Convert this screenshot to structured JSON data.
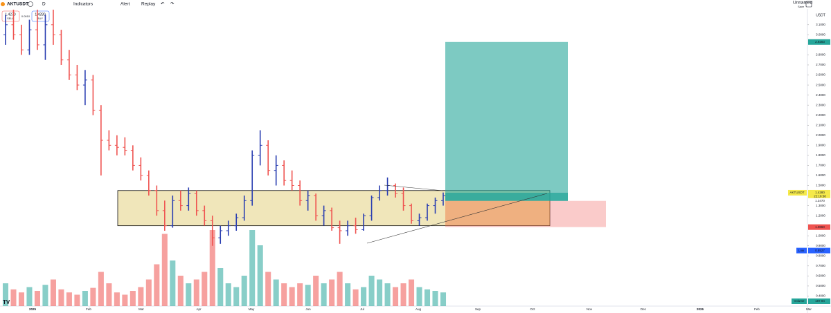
{
  "toolbar": {
    "symbol": "AKTUSDT",
    "interval": "D",
    "indicators": "Indicators",
    "alert": "Alert",
    "replay": "Replay",
    "layout_name": "Unnamed",
    "save": "Save"
  },
  "trade_panel": {
    "sell_price": "1.4270",
    "sell": "SELL",
    "spread": "0.0010",
    "buy_price": "1.4280",
    "buy": "BUY"
  },
  "chart_data": {
    "type": "ohlc",
    "currency": "USDT",
    "up_color": "#2a3eb1",
    "down_color": "#ef5350",
    "ylim": [
      0.3,
      3.25
    ],
    "yticks": [
      {
        "value": 0.4,
        "label": "0.4000"
      },
      {
        "value": 0.5,
        "label": "0.5000"
      },
      {
        "value": 0.6,
        "label": "0.6000"
      },
      {
        "value": 0.7,
        "label": "0.7000"
      },
      {
        "value": 0.8,
        "label": "0.8000"
      },
      {
        "value": 0.9,
        "label": "0.9000"
      },
      {
        "value": 1.0,
        "label": "1.0000"
      },
      {
        "value": 1.2,
        "label": "1.2000"
      },
      {
        "value": 1.3,
        "label": "1.3000"
      },
      {
        "value": 1.5,
        "label": "1.5000"
      },
      {
        "value": 1.6,
        "label": "1.6000"
      },
      {
        "value": 1.7,
        "label": "1.7000"
      },
      {
        "value": 1.8,
        "label": "1.8000"
      },
      {
        "value": 1.9,
        "label": "1.9000"
      },
      {
        "value": 2.0,
        "label": "2.0000"
      },
      {
        "value": 2.1,
        "label": "2.1000"
      },
      {
        "value": 2.2,
        "label": "2.2000"
      },
      {
        "value": 2.3,
        "label": "2.3000"
      },
      {
        "value": 2.4,
        "label": "2.4000"
      },
      {
        "value": 2.5,
        "label": "2.5000"
      },
      {
        "value": 2.6,
        "label": "2.6000"
      },
      {
        "value": 2.7,
        "label": "2.7000"
      },
      {
        "value": 2.8,
        "label": "2.8000"
      },
      {
        "value": 3.0,
        "label": "3.0000"
      },
      {
        "value": 3.1,
        "label": "3.1000"
      }
    ],
    "time_labels": [
      "2025",
      "Feb",
      "Mar",
      "Apr",
      "May",
      "Jun",
      "Jul",
      "Aug",
      "Sep",
      "Oct",
      "Nov",
      "Dec",
      "2026",
      "Feb",
      "Mar"
    ],
    "ohlc": [
      [
        3.0,
        3.2,
        2.9,
        3.1
      ],
      [
        3.1,
        3.25,
        2.95,
        3.0
      ],
      [
        3.0,
        3.1,
        2.8,
        2.85
      ],
      [
        2.85,
        3.15,
        2.8,
        3.05
      ],
      [
        3.05,
        3.25,
        2.85,
        2.9
      ],
      [
        2.9,
        3.2,
        2.75,
        3.1
      ],
      [
        3.1,
        3.25,
        2.9,
        3.0
      ],
      [
        3.0,
        3.05,
        2.7,
        2.75
      ],
      [
        2.75,
        2.85,
        2.55,
        2.6
      ],
      [
        2.6,
        2.7,
        2.45,
        2.5
      ],
      [
        2.5,
        2.65,
        2.3,
        2.55
      ],
      [
        2.55,
        2.6,
        2.2,
        2.25
      ],
      [
        2.25,
        2.3,
        1.6,
        1.95
      ],
      [
        1.95,
        2.05,
        1.85,
        1.9
      ],
      [
        1.9,
        2.0,
        1.8,
        1.88
      ],
      [
        1.88,
        1.98,
        1.8,
        1.85
      ],
      [
        1.85,
        1.9,
        1.65,
        1.7
      ],
      [
        1.7,
        1.78,
        1.55,
        1.6
      ],
      [
        1.6,
        1.65,
        1.4,
        1.45
      ],
      [
        1.45,
        1.5,
        1.2,
        1.25
      ],
      [
        1.25,
        1.35,
        1.05,
        1.1
      ],
      [
        1.1,
        1.4,
        1.08,
        1.35
      ],
      [
        1.35,
        1.45,
        1.25,
        1.3
      ],
      [
        1.3,
        1.48,
        1.25,
        1.42
      ],
      [
        1.42,
        1.45,
        1.2,
        1.25
      ],
      [
        1.25,
        1.3,
        1.1,
        1.15
      ],
      [
        1.15,
        1.2,
        0.9,
        0.98
      ],
      [
        0.98,
        1.1,
        0.92,
        1.05
      ],
      [
        1.05,
        1.15,
        1.0,
        1.1
      ],
      [
        1.1,
        1.22,
        1.05,
        1.18
      ],
      [
        1.18,
        1.4,
        1.15,
        1.35
      ],
      [
        1.35,
        1.85,
        1.3,
        1.8
      ],
      [
        1.8,
        2.05,
        1.7,
        1.9
      ],
      [
        1.9,
        1.95,
        1.6,
        1.65
      ],
      [
        1.65,
        1.8,
        1.5,
        1.7
      ],
      [
        1.7,
        1.75,
        1.5,
        1.55
      ],
      [
        1.55,
        1.65,
        1.45,
        1.5
      ],
      [
        1.5,
        1.55,
        1.3,
        1.35
      ],
      [
        1.35,
        1.45,
        1.25,
        1.4
      ],
      [
        1.4,
        1.42,
        1.15,
        1.2
      ],
      [
        1.2,
        1.3,
        1.1,
        1.25
      ],
      [
        1.25,
        1.28,
        1.05,
        1.08
      ],
      [
        1.08,
        1.15,
        0.92,
        1.05
      ],
      [
        1.05,
        1.15,
        1.0,
        1.1
      ],
      [
        1.1,
        1.18,
        1.02,
        1.06
      ],
      [
        1.06,
        1.22,
        1.05,
        1.2
      ],
      [
        1.2,
        1.4,
        1.15,
        1.38
      ],
      [
        1.38,
        1.5,
        1.35,
        1.45
      ],
      [
        1.45,
        1.58,
        1.4,
        1.5
      ],
      [
        1.5,
        1.52,
        1.38,
        1.42
      ],
      [
        1.42,
        1.48,
        1.25,
        1.3
      ],
      [
        1.3,
        1.32,
        1.12,
        1.15
      ],
      [
        1.15,
        1.22,
        1.1,
        1.18
      ],
      [
        1.18,
        1.32,
        1.15,
        1.3
      ],
      [
        1.3,
        1.38,
        1.22,
        1.35
      ],
      [
        1.35,
        1.43,
        1.3,
        1.4
      ]
    ],
    "volume": [
      30,
      22,
      18,
      25,
      20,
      28,
      35,
      22,
      18,
      15,
      20,
      24,
      45,
      30,
      18,
      15,
      20,
      25,
      35,
      55,
      95,
      60,
      40,
      30,
      35,
      45,
      100,
      50,
      30,
      25,
      40,
      100,
      80,
      45,
      35,
      30,
      25,
      30,
      28,
      40,
      30,
      35,
      45,
      30,
      22,
      25,
      40,
      35,
      30,
      25,
      30,
      35,
      25,
      22,
      20,
      18
    ],
    "zone": {
      "top": 1.45,
      "bottom": 1.1
    },
    "position": {
      "target": {
        "value": 2.9283,
        "label": "2.9283"
      },
      "entry": {
        "value": 1.347,
        "label": "1.3470"
      },
      "stop": {
        "value": 1.086,
        "label": "1.0860"
      }
    },
    "last_price": {
      "symbol": "AKTUSDT",
      "value": 1.428,
      "label": "1.4280",
      "countdown": "22:18:58"
    },
    "low": {
      "name": "Low",
      "value": 0.8527,
      "label": "0.8527"
    },
    "volume_tag": {
      "name": "Volume",
      "label": "187.94"
    }
  }
}
